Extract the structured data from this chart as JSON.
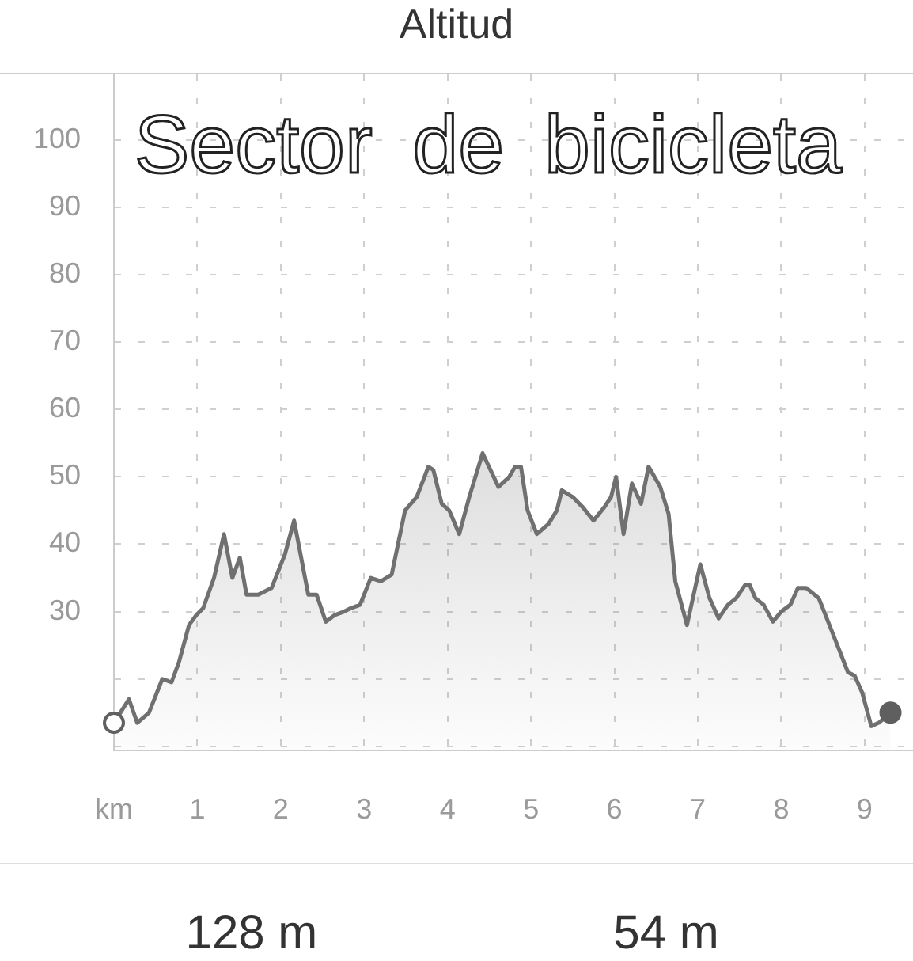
{
  "chart_data": {
    "type": "area",
    "title": "Altitud",
    "subtitle": "Sector de bicicleta",
    "annotations": [
      "128 m",
      "54 m"
    ],
    "xlim": [
      0,
      9.58
    ],
    "xticks": [
      {
        "value": 0,
        "label": "km"
      },
      1,
      2,
      3,
      4,
      5,
      6,
      7,
      8,
      9
    ],
    "ylim": [
      9.4,
      109.7
    ],
    "yticks": [
      {
        "value": 10,
        "label": null
      },
      {
        "value": 20,
        "label": null
      },
      30,
      40,
      50,
      60,
      70,
      80,
      90,
      100
    ],
    "grid": true,
    "series": [
      {
        "color": "#707070",
        "x": [
          0,
          0.18,
          0.28,
          0.42,
          0.58,
          0.69,
          0.78,
          0.9,
          0.99,
          1.07,
          1.2,
          1.32,
          1.42,
          1.51,
          1.59,
          1.73,
          1.89,
          2.05,
          2.16,
          2.33,
          2.43,
          2.54,
          2.65,
          2.76,
          2.84,
          2.95,
          3.08,
          3.2,
          3.33,
          3.49,
          3.63,
          3.77,
          3.83,
          3.93,
          4.02,
          4.14,
          4.26,
          4.42,
          4.61,
          4.74,
          4.81,
          4.88,
          4.96,
          5.07,
          5.21,
          5.31,
          5.37,
          5.5,
          5.62,
          5.75,
          5.88,
          5.96,
          6.02,
          6.11,
          6.21,
          6.32,
          6.41,
          6.55,
          6.65,
          6.73,
          6.87,
          7.03,
          7.14,
          7.25,
          7.36,
          7.46,
          7.57,
          7.62,
          7.69,
          7.79,
          7.9,
          8,
          8.11,
          8.2,
          8.3,
          8.45,
          8.61,
          8.8,
          8.88,
          8.97,
          9.08,
          9.17,
          9.31
        ],
        "values": [
          13.5,
          17,
          13.5,
          15,
          20,
          19.5,
          22.5,
          28,
          29.5,
          30.5,
          35,
          41.5,
          35,
          38,
          32.5,
          32.5,
          33.5,
          38.5,
          43.5,
          32.5,
          32.5,
          28.5,
          29.5,
          30,
          30.5,
          31,
          35,
          34.5,
          35.5,
          45,
          47,
          51.5,
          51,
          46,
          45,
          41.5,
          47,
          53.5,
          48.5,
          50,
          51.5,
          51.5,
          45,
          41.5,
          43,
          45,
          48,
          47,
          45.5,
          43.5,
          45.5,
          47,
          50,
          41.5,
          49,
          46,
          51.5,
          48.5,
          44.5,
          34.5,
          28,
          37,
          32,
          29,
          31,
          32,
          34,
          34,
          32,
          31,
          28.5,
          30,
          31,
          33.5,
          33.5,
          32,
          27,
          21,
          20.5,
          18,
          13,
          13.5,
          15
        ]
      },
      {
        "type": "scatter",
        "marker": "circle",
        "color": "#5f5f5f",
        "colors": [
          "#ffffff",
          "#5f5f5f"
        ],
        "x": [
          0,
          9.31
        ],
        "values": [
          13.5,
          15
        ]
      }
    ]
  }
}
